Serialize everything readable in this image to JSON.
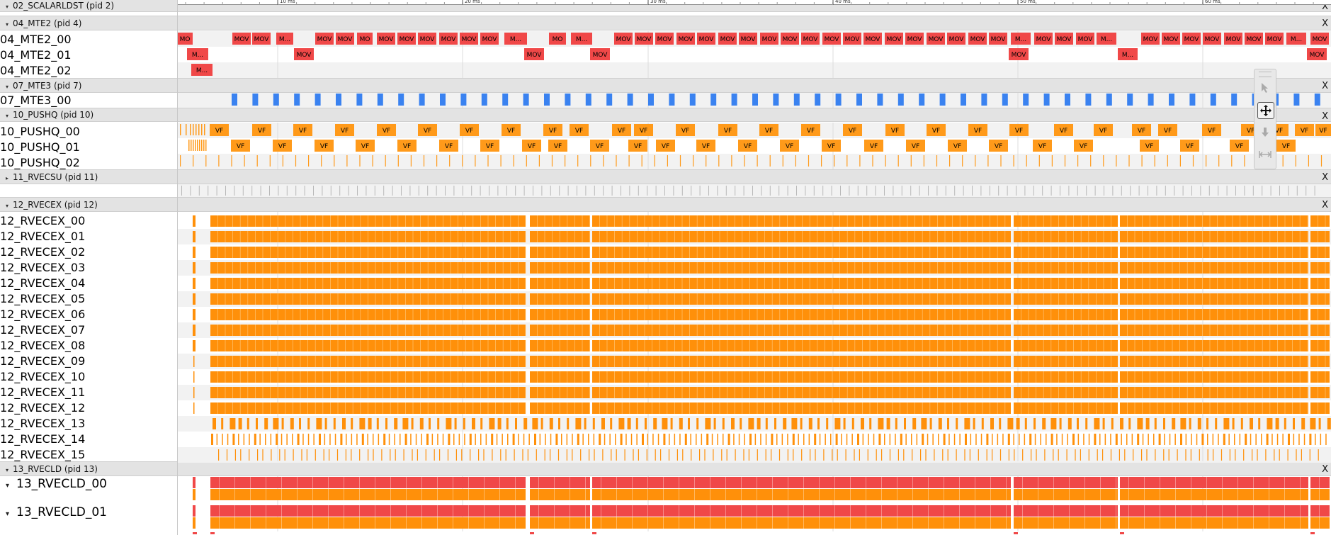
{
  "colors": {
    "mte2": "#f04848",
    "mte3": "#3a82f0",
    "pushq": "#ff9a1a",
    "rvecex": "#ff900a",
    "rvecld_a": "#f04848",
    "rvecld_b": "#ff900a",
    "rvecsu_tick": "#b8b8b8",
    "header_bg": "#e3e3e3",
    "alt_row": "#f2f2f2"
  },
  "ruler": {
    "tick_labels": [
      "10 ms",
      "20 ms",
      "30 ms",
      "40 ms",
      "50 ms",
      "60 ms"
    ]
  },
  "processes": [
    {
      "title": "02_SCALARLDST (pid 2)",
      "close": "X"
    },
    {
      "title": "04_MTE2 (pid 4)",
      "close": "X"
    },
    {
      "title": "07_MTE3 (pid 7)",
      "close": "X"
    },
    {
      "title": "10_PUSHQ (pid 10)",
      "close": "X"
    },
    {
      "title": "11_RVECSU (pid 11)",
      "close": "X"
    },
    {
      "title": "12_RVECEX (pid 12)",
      "close": "X"
    },
    {
      "title": "13_RVECLD (pid 13)",
      "close": "X"
    }
  ],
  "tracks": {
    "mte2": [
      "04_MTE2_00",
      "04_MTE2_01",
      "04_MTE2_02"
    ],
    "mte3": [
      "07_MTE3_00"
    ],
    "pushq": [
      "10_PUSHQ_00",
      "10_PUSHQ_01",
      "10_PUSHQ_02"
    ],
    "rvecex": [
      "12_RVECEX_00",
      "12_RVECEX_01",
      "12_RVECEX_02",
      "12_RVECEX_03",
      "12_RVECEX_04",
      "12_RVECEX_05",
      "12_RVECEX_06",
      "12_RVECEX_07",
      "12_RVECEX_08",
      "12_RVECEX_09",
      "12_RVECEX_10",
      "12_RVECEX_11",
      "12_RVECEX_12",
      "12_RVECEX_13",
      "12_RVECEX_14",
      "12_RVECEX_15"
    ],
    "rvecld": [
      "13_RVECLD_00",
      "13_RVECLD_01"
    ]
  },
  "slice_labels": {
    "mov": "MOV",
    "mo": "MO",
    "m_trunc": "M...",
    "vf": "VF",
    "v": "V",
    "f": "F"
  },
  "toolbar": {
    "icons": [
      "select-pointer-icon",
      "pan-move-icon",
      "zoom-icon",
      "timing-icon"
    ]
  }
}
